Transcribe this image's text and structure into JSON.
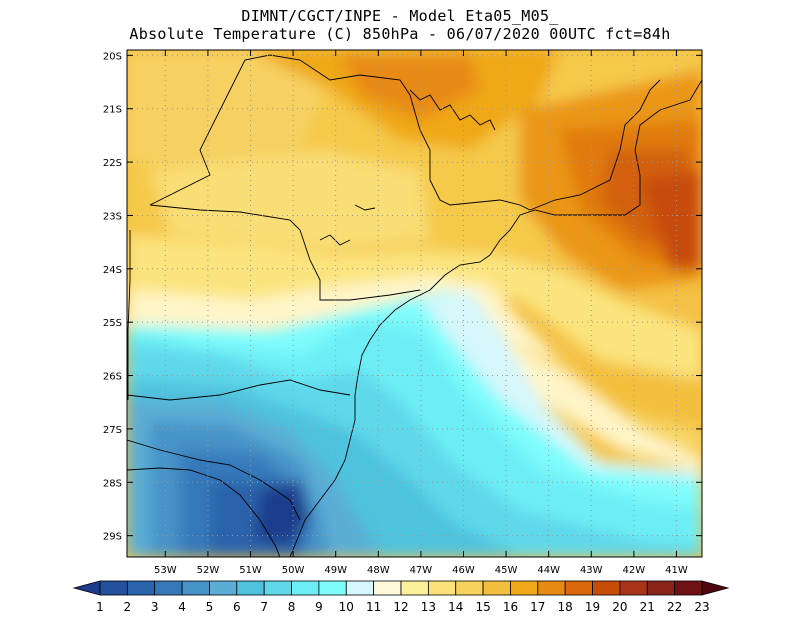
{
  "header": {
    "line1": "DIMNT/CGCT/INPE -  Model Eta05_M05_",
    "line2": "Absolute Temperature (C) 850hPa -  06/07/2020 00UTC fct=84h"
  },
  "map": {
    "lon_range": [
      -53.9,
      -40.4
    ],
    "lat_range": [
      -29.4,
      -19.9
    ],
    "lon_ticks": [
      {
        "value": -53,
        "label": "53W"
      },
      {
        "value": -52,
        "label": "52W"
      },
      {
        "value": -51,
        "label": "51W"
      },
      {
        "value": -50,
        "label": "50W"
      },
      {
        "value": -49,
        "label": "49W"
      },
      {
        "value": -48,
        "label": "48W"
      },
      {
        "value": -47,
        "label": "47W"
      },
      {
        "value": -46,
        "label": "46W"
      },
      {
        "value": -45,
        "label": "45W"
      },
      {
        "value": -44,
        "label": "44W"
      },
      {
        "value": -43,
        "label": "43W"
      },
      {
        "value": -42,
        "label": "42W"
      },
      {
        "value": -41,
        "label": "41W"
      }
    ],
    "lat_ticks": [
      {
        "value": -20,
        "label": "20S"
      },
      {
        "value": -21,
        "label": "21S"
      },
      {
        "value": -22,
        "label": "22S"
      },
      {
        "value": -23,
        "label": "23S"
      },
      {
        "value": -24,
        "label": "24S"
      },
      {
        "value": -25,
        "label": "25S"
      },
      {
        "value": -26,
        "label": "26S"
      },
      {
        "value": -27,
        "label": "27S"
      },
      {
        "value": -28,
        "label": "28S"
      },
      {
        "value": -29,
        "label": "29S"
      }
    ],
    "grid": "dotted"
  },
  "colorbar": {
    "labels": [
      "1",
      "2",
      "3",
      "4",
      "5",
      "6",
      "7",
      "8",
      "9",
      "10",
      "11",
      "12",
      "13",
      "14",
      "15",
      "16",
      "17",
      "18",
      "19",
      "20",
      "21",
      "22",
      "23"
    ],
    "colors": [
      "#1e3c8c",
      "#24519c",
      "#2a64ac",
      "#3579bb",
      "#4793c8",
      "#5aaed6",
      "#4ec3de",
      "#5ed8ea",
      "#6deef6",
      "#7efcfc",
      "#d6f7fb",
      "#fff9dc",
      "#fdf09a",
      "#fbe178",
      "#f6d15c",
      "#f3bf3e",
      "#f0a818",
      "#e88a12",
      "#dc680c",
      "#c84c08",
      "#a8341a",
      "#8a2418",
      "#6e1216",
      "#50060e"
    ]
  }
}
